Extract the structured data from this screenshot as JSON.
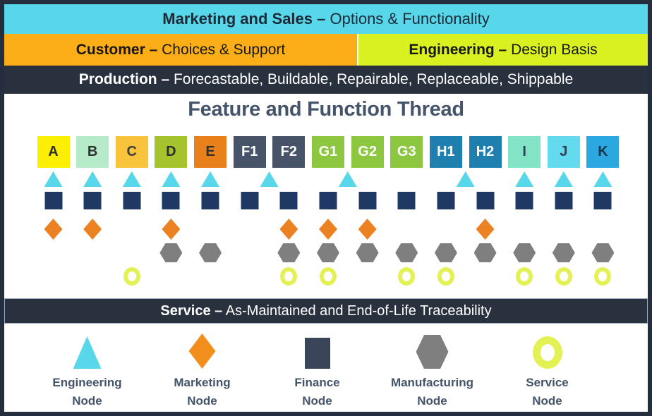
{
  "title": "Feature and Function Thread",
  "banners": {
    "marketing": {
      "bold": "Marketing and Sales –",
      "rest": " Options & Functionality",
      "bg": "#57D7E9"
    },
    "customer": {
      "bold": "Customer –",
      "rest": " Choices & Support",
      "bg": "#FBAE17"
    },
    "engineering": {
      "bold": "Engineering –",
      "rest": " Design Basis",
      "bg": "#D9F121"
    },
    "production": {
      "bold": "Production –",
      "rest": " Forecastable, Buildable, Repairable, Replaceable, Shippable",
      "bg": "#28313D"
    },
    "service": {
      "bold": "Service –",
      "rest": " As-Maintained and End-of-Life Traceability",
      "bg": "#28313D"
    }
  },
  "columns": [
    {
      "label": "A",
      "bg": "#FCEF04",
      "fg": "#2F2F2F"
    },
    {
      "label": "B",
      "bg": "#B5EBC9",
      "fg": "#2F2F2F"
    },
    {
      "label": "C",
      "bg": "#FAC33C",
      "fg": "#3F3F3F"
    },
    {
      "label": "D",
      "bg": "#A5C32D",
      "fg": "#2F2F2F"
    },
    {
      "label": "E",
      "bg": "#E8811C",
      "fg": "#2F2F2F"
    },
    {
      "label": "F1",
      "bg": "#475368",
      "fg": "#FFFFFF"
    },
    {
      "label": "F2",
      "bg": "#475368",
      "fg": "#FFFFFF"
    },
    {
      "label": "G1",
      "bg": "#8DC63F",
      "fg": "#FFFFFF"
    },
    {
      "label": "G2",
      "bg": "#8DC63F",
      "fg": "#FFFFFF"
    },
    {
      "label": "G3",
      "bg": "#8DC63F",
      "fg": "#FFFFFF"
    },
    {
      "label": "H1",
      "bg": "#1F7FAE",
      "fg": "#FFFFFF"
    },
    {
      "label": "H2",
      "bg": "#1F7FAE",
      "fg": "#FFFFFF"
    },
    {
      "label": "I",
      "bg": "#83E3C6",
      "fg": "#2B4154"
    },
    {
      "label": "J",
      "bg": "#63DAEE",
      "fg": "#2B4154"
    },
    {
      "label": "K",
      "bg": "#2CA8E0",
      "fg": "#14364F"
    }
  ],
  "node_grid": {
    "note": "positions are column indexes (A=0 ... K=14); half values sit between two columns",
    "rows": [
      {
        "type": "engineering",
        "shape": "triangle",
        "color": "#57D7E9",
        "positions": [
          0,
          1,
          2,
          3,
          4,
          5.5,
          7.5,
          10.5,
          12,
          13,
          14
        ]
      },
      {
        "type": "finance",
        "shape": "square",
        "color": "#1F3864",
        "positions": [
          0,
          1,
          2,
          3,
          4,
          5,
          6,
          7,
          8,
          9,
          10,
          11,
          12,
          13,
          14
        ]
      },
      {
        "type": "marketing",
        "shape": "diamond",
        "color": "#EC8121",
        "positions": [
          0,
          1,
          3,
          6,
          7,
          8,
          11
        ]
      },
      {
        "type": "manufacturing",
        "shape": "hexagon",
        "color": "#7F7F7F",
        "positions": [
          3,
          4,
          6,
          7,
          8,
          9,
          10,
          11,
          12,
          13,
          14
        ]
      },
      {
        "type": "service",
        "shape": "ring",
        "color": "#E3F155",
        "positions": [
          2,
          6,
          7,
          9,
          10,
          12,
          13,
          14
        ]
      }
    ]
  },
  "legend": {
    "items": [
      {
        "type": "engineering",
        "shape": "triangle",
        "color": "#57D7E9",
        "line1": "Engineering",
        "line2": "Node"
      },
      {
        "type": "marketing",
        "shape": "diamond",
        "color": "#F28F1C",
        "line1": "Marketing",
        "line2": "Node"
      },
      {
        "type": "finance",
        "shape": "square",
        "color": "#3A4559",
        "line1": "Finance",
        "line2": "Node"
      },
      {
        "type": "manufacturing",
        "shape": "hexagon",
        "color": "#7F7F7F",
        "line1": "Manufacturing",
        "line2": "Node"
      },
      {
        "type": "service",
        "shape": "ring",
        "color": "#E3F155",
        "line1": "Service",
        "line2": "Node"
      }
    ]
  }
}
